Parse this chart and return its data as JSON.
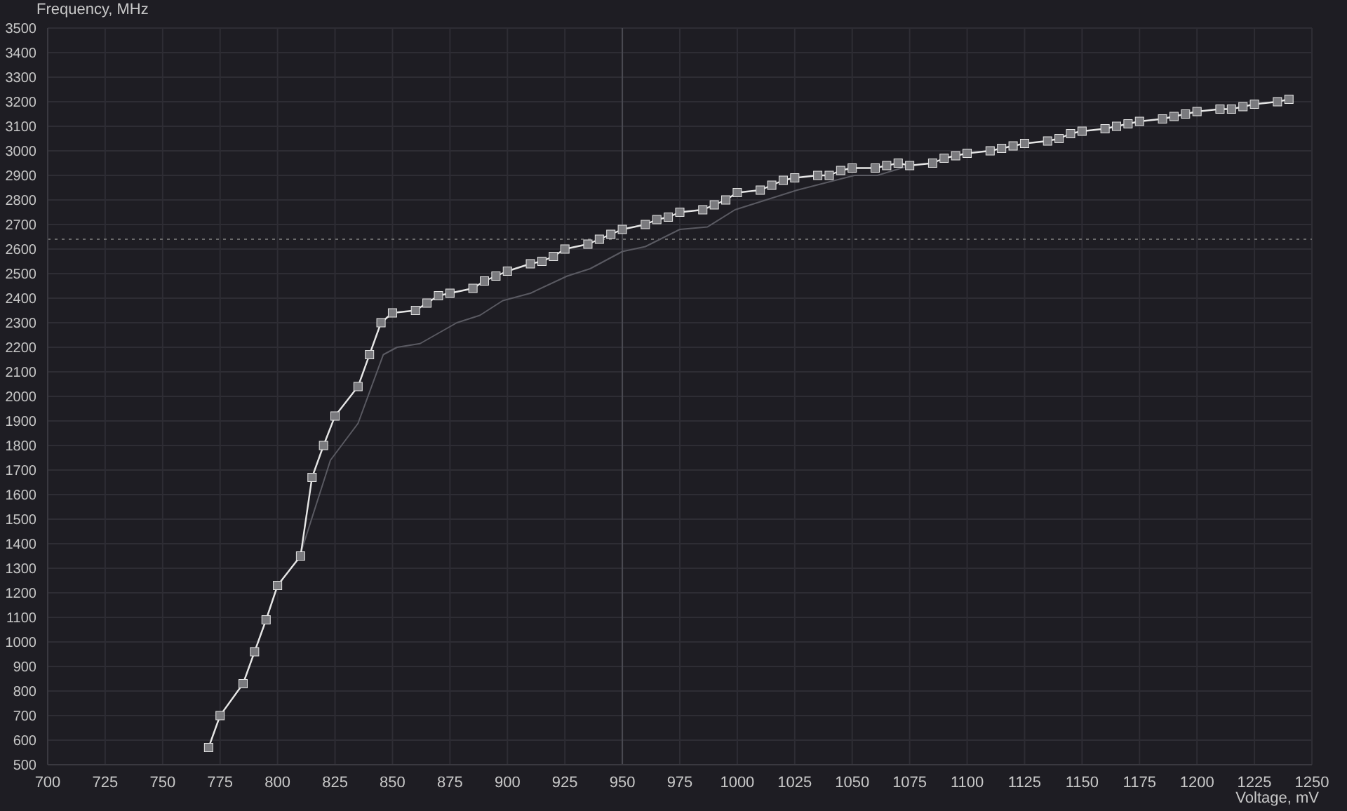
{
  "chart_data": {
    "type": "line",
    "xlabel": "Voltage, mV",
    "ylabel": "Frequency, MHz",
    "xlim": [
      700,
      1250
    ],
    "xticks": [
      700,
      725,
      750,
      775,
      800,
      825,
      850,
      875,
      900,
      925,
      950,
      975,
      1000,
      1025,
      1050,
      1075,
      1100,
      1125,
      1150,
      1175,
      1200,
      1225,
      1250
    ],
    "ylim": [
      500,
      3500
    ],
    "yticks": [
      500,
      600,
      700,
      800,
      900,
      1000,
      1100,
      1200,
      1300,
      1400,
      1500,
      1600,
      1700,
      1800,
      1900,
      2000,
      2100,
      2200,
      2300,
      2400,
      2500,
      2600,
      2700,
      2800,
      2900,
      3000,
      3100,
      3200,
      3300,
      3400,
      3500
    ],
    "grid": true,
    "series": [
      {
        "color": "#5a5a62",
        "marker": "none",
        "x": [
          810,
          823,
          835,
          846,
          852,
          862,
          878,
          888,
          898,
          910,
          926,
          936,
          950,
          960,
          975,
          987,
          999,
          1026,
          1051,
          1061,
          1075
        ],
        "values": [
          1360,
          1740,
          1890,
          2170,
          2200,
          2215,
          2300,
          2330,
          2390,
          2420,
          2490,
          2520,
          2590,
          2610,
          2680,
          2690,
          2760,
          2840,
          2900,
          2900,
          2940
        ]
      },
      {
        "color": "#e6e6e6",
        "marker": "square",
        "x": [
          770,
          775,
          785,
          790,
          795,
          800,
          810,
          815,
          820,
          825,
          835,
          840,
          845,
          850,
          860,
          865,
          870,
          875,
          885,
          890,
          895,
          900,
          910,
          915,
          920,
          925,
          935,
          940,
          945,
          950,
          960,
          965,
          970,
          975,
          985,
          990,
          995,
          1000,
          1010,
          1015,
          1020,
          1025,
          1035,
          1040,
          1045,
          1050,
          1060,
          1065,
          1070,
          1075,
          1085,
          1090,
          1095,
          1100,
          1110,
          1115,
          1120,
          1125,
          1135,
          1140,
          1145,
          1150,
          1160,
          1165,
          1170,
          1175,
          1185,
          1190,
          1195,
          1200,
          1210,
          1215,
          1220,
          1225,
          1235,
          1240
        ],
        "values": [
          570,
          700,
          830,
          960,
          1090,
          1230,
          1350,
          1670,
          1800,
          1920,
          2040,
          2170,
          2300,
          2340,
          2350,
          2380,
          2410,
          2420,
          2440,
          2470,
          2490,
          2510,
          2540,
          2550,
          2570,
          2600,
          2620,
          2640,
          2660,
          2680,
          2700,
          2720,
          2730,
          2750,
          2760,
          2780,
          2800,
          2830,
          2840,
          2860,
          2880,
          2890,
          2900,
          2900,
          2920,
          2930,
          2930,
          2940,
          2950,
          2940,
          2950,
          2970,
          2980,
          2990,
          3000,
          3010,
          3020,
          3030,
          3040,
          3050,
          3070,
          3080,
          3090,
          3100,
          3110,
          3120,
          3130,
          3140,
          3150,
          3160,
          3170,
          3170,
          3180,
          3190,
          3200,
          3210
        ]
      }
    ],
    "ref_lines": [
      {
        "axis": "x",
        "value": 950,
        "color": "#4a4a52",
        "line_style": "solid"
      },
      {
        "axis": "y",
        "value": 2640,
        "color": "#6a6a6a",
        "line_style": "dotted"
      }
    ]
  }
}
